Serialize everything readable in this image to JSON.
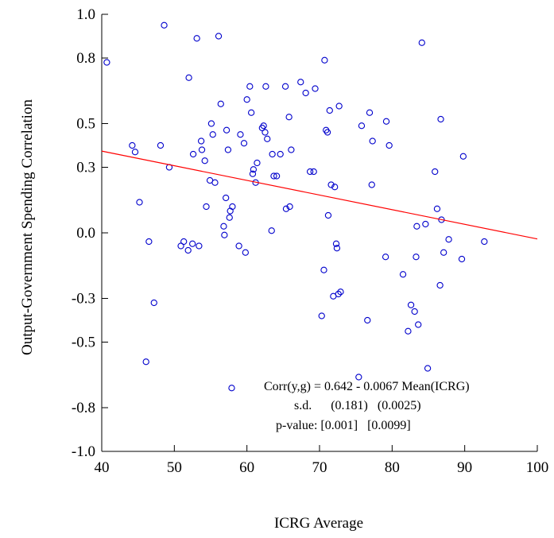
{
  "chart_data": {
    "type": "scatter",
    "xlabel": "ICRG Average",
    "ylabel": "Output-Government Spending Correlation",
    "xlim": [
      40,
      100
    ],
    "ylim": [
      -1.0,
      1.0
    ],
    "xticks": [
      40,
      50,
      60,
      70,
      80,
      90,
      100
    ],
    "yticks": [
      -1.0,
      -0.8,
      -0.5,
      -0.3,
      0.0,
      0.3,
      0.5,
      0.8,
      1.0
    ],
    "xtick_labels": [
      "40",
      "50",
      "60",
      "70",
      "80",
      "90",
      "100"
    ],
    "ytick_labels": [
      "-1.0",
      "-0.8",
      "-0.5",
      "-0.3",
      "0.0",
      "0.3",
      "0.5",
      "0.8",
      "1.0"
    ],
    "grid": false,
    "point_color": "#0000cc",
    "line_color": "#ff0000",
    "fit_line": {
      "intercept": 0.642,
      "slope": -0.0067
    },
    "annotation": [
      "Corr(y,g) = 0.642 - 0.0067 Mean(ICRG)",
      "s.d.      (0.181)   (0.0025)",
      "p-value: [0.001]   [0.0099]"
    ],
    "points": [
      [
        40.7,
        0.78
      ],
      [
        44.2,
        0.4
      ],
      [
        44.6,
        0.37
      ],
      [
        45.2,
        0.14
      ],
      [
        46.1,
        -0.59
      ],
      [
        46.5,
        -0.04
      ],
      [
        47.2,
        -0.32
      ],
      [
        48.1,
        0.4
      ],
      [
        48.6,
        0.95
      ],
      [
        49.3,
        0.3
      ],
      [
        50.9,
        -0.06
      ],
      [
        51.3,
        -0.04
      ],
      [
        51.9,
        -0.08
      ],
      [
        52.0,
        0.71
      ],
      [
        52.5,
        -0.05
      ],
      [
        52.6,
        0.36
      ],
      [
        53.1,
        0.89
      ],
      [
        53.4,
        -0.06
      ],
      [
        53.7,
        0.42
      ],
      [
        53.8,
        0.38
      ],
      [
        54.2,
        0.33
      ],
      [
        54.4,
        0.12
      ],
      [
        54.9,
        0.24
      ],
      [
        55.1,
        0.5
      ],
      [
        55.3,
        0.45
      ],
      [
        55.6,
        0.23
      ],
      [
        56.1,
        0.9
      ],
      [
        56.4,
        0.59
      ],
      [
        56.8,
        0.03
      ],
      [
        56.9,
        -0.01
      ],
      [
        57.1,
        0.16
      ],
      [
        57.2,
        0.47
      ],
      [
        57.4,
        0.38
      ],
      [
        57.6,
        0.07
      ],
      [
        57.7,
        0.1
      ],
      [
        57.9,
        -0.71
      ],
      [
        58.0,
        0.12
      ],
      [
        58.9,
        -0.06
      ],
      [
        59.1,
        0.45
      ],
      [
        59.6,
        0.41
      ],
      [
        59.8,
        -0.09
      ],
      [
        60.0,
        0.61
      ],
      [
        60.4,
        0.67
      ],
      [
        60.6,
        0.55
      ],
      [
        60.8,
        0.27
      ],
      [
        60.9,
        0.29
      ],
      [
        61.2,
        0.23
      ],
      [
        61.4,
        0.32
      ],
      [
        62.1,
        0.48
      ],
      [
        62.3,
        0.49
      ],
      [
        62.5,
        0.46
      ],
      [
        62.6,
        0.67
      ],
      [
        62.8,
        0.43
      ],
      [
        63.4,
        0.01
      ],
      [
        63.5,
        0.36
      ],
      [
        63.7,
        0.26
      ],
      [
        64.1,
        0.26
      ],
      [
        64.6,
        0.36
      ],
      [
        65.3,
        0.67
      ],
      [
        65.4,
        0.11
      ],
      [
        65.8,
        0.53
      ],
      [
        65.9,
        0.12
      ],
      [
        66.1,
        0.38
      ],
      [
        67.4,
        0.69
      ],
      [
        68.1,
        0.64
      ],
      [
        68.7,
        0.28
      ],
      [
        69.2,
        0.28
      ],
      [
        69.4,
        0.66
      ],
      [
        70.3,
        -0.38
      ],
      [
        70.6,
        -0.17
      ],
      [
        70.7,
        0.79
      ],
      [
        70.9,
        0.47
      ],
      [
        71.1,
        0.46
      ],
      [
        71.2,
        0.08
      ],
      [
        71.4,
        0.56
      ],
      [
        71.6,
        0.22
      ],
      [
        71.9,
        -0.29
      ],
      [
        72.1,
        0.21
      ],
      [
        72.3,
        -0.05
      ],
      [
        72.4,
        -0.07
      ],
      [
        72.6,
        -0.28
      ],
      [
        72.7,
        0.58
      ],
      [
        72.9,
        -0.27
      ],
      [
        75.4,
        -0.66
      ],
      [
        75.8,
        0.49
      ],
      [
        76.6,
        -0.4
      ],
      [
        76.9,
        0.55
      ],
      [
        77.2,
        0.22
      ],
      [
        77.3,
        0.42
      ],
      [
        79.1,
        -0.11
      ],
      [
        79.2,
        0.51
      ],
      [
        79.6,
        0.4
      ],
      [
        81.5,
        -0.19
      ],
      [
        82.2,
        -0.45
      ],
      [
        82.6,
        -0.33
      ],
      [
        83.1,
        -0.36
      ],
      [
        83.3,
        -0.11
      ],
      [
        83.4,
        0.03
      ],
      [
        83.6,
        -0.42
      ],
      [
        84.1,
        0.87
      ],
      [
        84.6,
        0.04
      ],
      [
        84.9,
        -0.62
      ],
      [
        85.9,
        0.28
      ],
      [
        86.2,
        0.11
      ],
      [
        86.6,
        -0.24
      ],
      [
        86.7,
        0.52
      ],
      [
        86.8,
        0.06
      ],
      [
        87.1,
        -0.09
      ],
      [
        87.8,
        -0.03
      ],
      [
        89.6,
        -0.12
      ],
      [
        89.8,
        0.35
      ],
      [
        92.7,
        -0.04
      ]
    ]
  }
}
